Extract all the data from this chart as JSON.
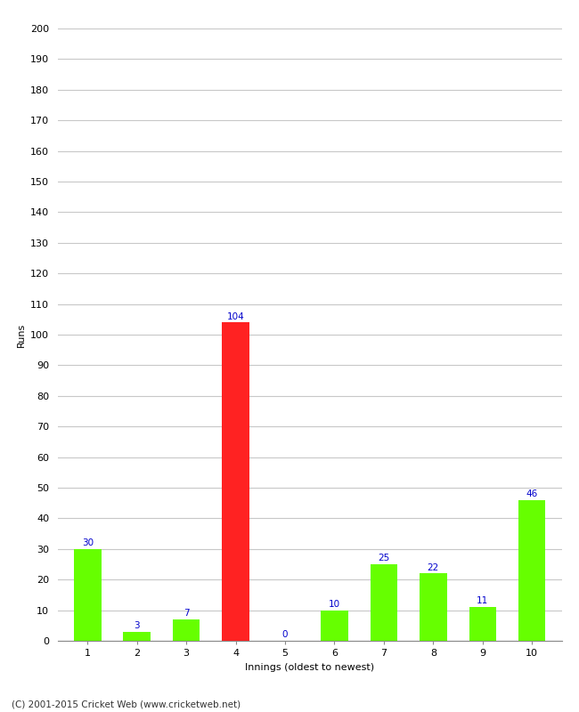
{
  "categories": [
    "1",
    "2",
    "3",
    "4",
    "5",
    "6",
    "7",
    "8",
    "9",
    "10"
  ],
  "values": [
    30,
    3,
    7,
    104,
    0,
    10,
    25,
    22,
    11,
    46
  ],
  "bar_colors": [
    "#66ff00",
    "#66ff00",
    "#66ff00",
    "#ff2222",
    "#66ff00",
    "#66ff00",
    "#66ff00",
    "#66ff00",
    "#66ff00",
    "#66ff00"
  ],
  "xlabel": "Innings (oldest to newest)",
  "ylabel": "Runs",
  "ylim": [
    0,
    200
  ],
  "yticks": [
    0,
    10,
    20,
    30,
    40,
    50,
    60,
    70,
    80,
    90,
    100,
    110,
    120,
    130,
    140,
    150,
    160,
    170,
    180,
    190,
    200
  ],
  "label_color": "#0000cc",
  "label_fontsize": 7.5,
  "axis_label_fontsize": 8,
  "tick_fontsize": 8,
  "footer": "(C) 2001-2015 Cricket Web (www.cricketweb.net)",
  "footer_fontsize": 7.5,
  "background_color": "#ffffff",
  "grid_color": "#c8c8c8",
  "bar_width": 0.55
}
